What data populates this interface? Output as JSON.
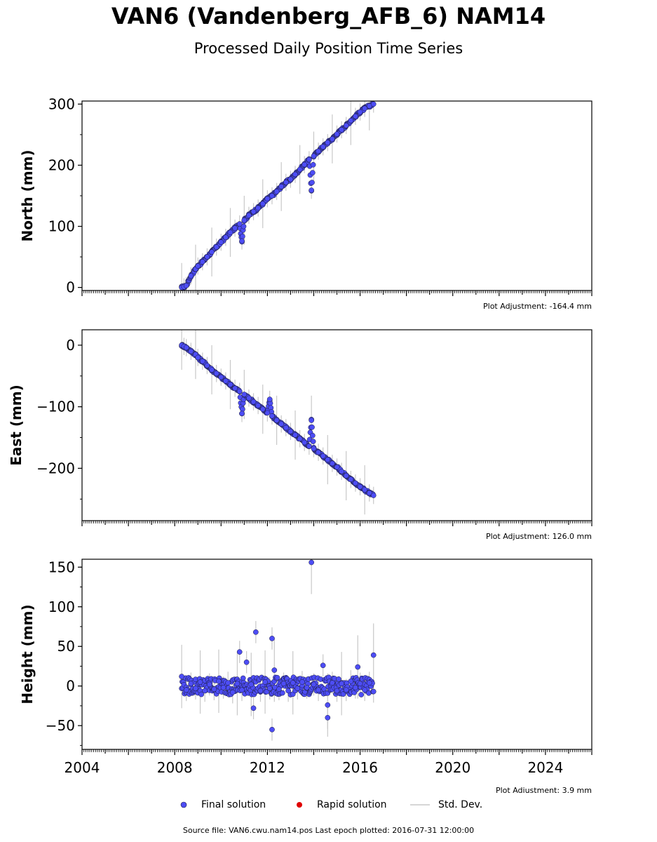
{
  "title": "VAN6 (Vandenberg_AFB_6) NAM14",
  "subtitle": "Processed Daily Position Time Series",
  "footer": "Source file: VAN6.cwu.nam14.pos  Last epoch plotted: 2016-07-31 12:00:00",
  "colors": {
    "final": "#4d4df5",
    "rapid": "#e00000",
    "stddev": "#c8c8c8",
    "edge": "#1a1a3a"
  },
  "legend": [
    {
      "label": "Final solution",
      "symbol": "blue-dot"
    },
    {
      "label": "Rapid solution",
      "symbol": "red-dot"
    },
    {
      "label": "Std. Dev.",
      "symbol": "gray-line"
    }
  ],
  "chart_data": [
    {
      "type": "scatter",
      "ylabel": "North (mm)",
      "adjustment": "Plot Adjustment: -164.4 mm",
      "xlim": [
        2004,
        2026
      ],
      "ylim": [
        -5,
        305
      ],
      "yticks": [
        0,
        100,
        200,
        300
      ],
      "ytick_labels": [
        "0",
        "100",
        "200",
        "300"
      ],
      "series": [
        {
          "name": "Final solution",
          "x": [
            2008.3,
            2008.4,
            2008.5,
            2008.7,
            2008.9,
            2009.0,
            2009.2,
            2009.4,
            2009.6,
            2009.8,
            2010.0,
            2010.2,
            2010.4,
            2010.6,
            2010.8,
            2010.9,
            2011.0,
            2011.2,
            2011.4,
            2011.6,
            2011.8,
            2012.0,
            2012.2,
            2012.4,
            2012.6,
            2012.8,
            2013.0,
            2013.2,
            2013.4,
            2013.6,
            2013.8,
            2013.9,
            2014.0,
            2014.2,
            2014.4,
            2014.6,
            2014.8,
            2015.0,
            2015.2,
            2015.4,
            2015.6,
            2015.8,
            2016.0,
            2016.2,
            2016.4,
            2016.58
          ],
          "y": [
            0,
            1,
            3,
            19,
            30,
            35,
            42,
            50,
            58,
            66,
            74,
            82,
            90,
            97,
            104,
            76,
            110,
            118,
            124,
            130,
            137,
            145,
            150,
            157,
            165,
            172,
            177,
            185,
            193,
            201,
            209,
            159,
            215,
            223,
            230,
            237,
            243,
            251,
            258,
            265,
            273,
            280,
            287,
            293,
            297,
            300
          ]
        },
        {
          "name": "Rapid solution",
          "x": [],
          "y": []
        }
      ]
    },
    {
      "type": "scatter",
      "ylabel": "East (mm)",
      "adjustment": "Plot Adjustment: 126.0 mm",
      "xlim": [
        2004,
        2026
      ],
      "ylim": [
        -285,
        25
      ],
      "yticks": [
        0,
        -100,
        -200
      ],
      "ytick_labels": [
        "0",
        "−100",
        "−200"
      ],
      "series": [
        {
          "name": "Final solution",
          "x": [
            2008.3,
            2008.4,
            2008.5,
            2008.7,
            2008.9,
            2009.0,
            2009.2,
            2009.4,
            2009.6,
            2009.8,
            2010.0,
            2010.2,
            2010.4,
            2010.6,
            2010.8,
            2010.9,
            2011.0,
            2011.2,
            2011.4,
            2011.6,
            2011.8,
            2012.0,
            2012.1,
            2012.2,
            2012.4,
            2012.6,
            2012.8,
            2013.0,
            2013.2,
            2013.4,
            2013.6,
            2013.8,
            2013.9,
            2014.0,
            2014.2,
            2014.4,
            2014.6,
            2014.8,
            2015.0,
            2015.2,
            2015.4,
            2015.6,
            2015.8,
            2016.0,
            2016.2,
            2016.4,
            2016.58
          ],
          "y": [
            0,
            -2,
            -4,
            -10,
            -15,
            -20,
            -26,
            -33,
            -40,
            -46,
            -52,
            -58,
            -64,
            -70,
            -75,
            -111,
            -80,
            -86,
            -92,
            -98,
            -104,
            -110,
            -88,
            -115,
            -122,
            -128,
            -134,
            -140,
            -146,
            -152,
            -158,
            -164,
            -122,
            -168,
            -174,
            -180,
            -186,
            -192,
            -198,
            -205,
            -212,
            -218,
            -224,
            -230,
            -235,
            -240,
            -244
          ]
        },
        {
          "name": "Rapid solution",
          "x": [],
          "y": []
        }
      ]
    },
    {
      "type": "scatter",
      "ylabel": "Height (mm)",
      "adjustment": "Plot Adjustment: 3.9 mm",
      "xlim": [
        2004,
        2026
      ],
      "ylim": [
        -80,
        160
      ],
      "yticks": [
        -50,
        0,
        50,
        100,
        150
      ],
      "ytick_labels": [
        "−50",
        "0",
        "50",
        "100",
        "150"
      ],
      "xticks": [
        2004,
        2008,
        2012,
        2016,
        2020,
        2024
      ],
      "xtick_labels": [
        "2004",
        "2008",
        "2012",
        "2016",
        "2020",
        "2024"
      ],
      "series": [
        {
          "name": "Final solution",
          "x": [
            2008.3,
            2008.5,
            2008.7,
            2008.9,
            2009.1,
            2009.3,
            2009.5,
            2009.7,
            2009.9,
            2010.1,
            2010.3,
            2010.5,
            2010.7,
            2010.8,
            2010.9,
            2011.1,
            2011.3,
            2011.4,
            2011.5,
            2011.7,
            2011.9,
            2012.1,
            2012.2,
            2012.2,
            2012.3,
            2012.5,
            2012.7,
            2012.9,
            2013.1,
            2013.3,
            2013.5,
            2013.7,
            2013.9,
            2014.0,
            2014.2,
            2014.4,
            2014.6,
            2014.6,
            2014.8,
            2015.0,
            2015.2,
            2015.4,
            2015.6,
            2015.8,
            2015.9,
            2016.0,
            2016.2,
            2016.4,
            2016.58,
            2016.58
          ],
          "y": [
            12,
            -5,
            3,
            -3,
            5,
            -6,
            2,
            -4,
            6,
            -2,
            4,
            -8,
            3,
            43,
            -5,
            30,
            2,
            -28,
            68,
            -6,
            5,
            -3,
            60,
            -55,
            20,
            -4,
            3,
            -6,
            4,
            -3,
            5,
            -2,
            156,
            2,
            -5,
            26,
            -24,
            -40,
            4,
            -6,
            3,
            -5,
            6,
            -2,
            24,
            3,
            -5,
            4,
            39,
            -7
          ]
        },
        {
          "name": "Rapid solution",
          "x": [],
          "y": []
        }
      ]
    }
  ]
}
